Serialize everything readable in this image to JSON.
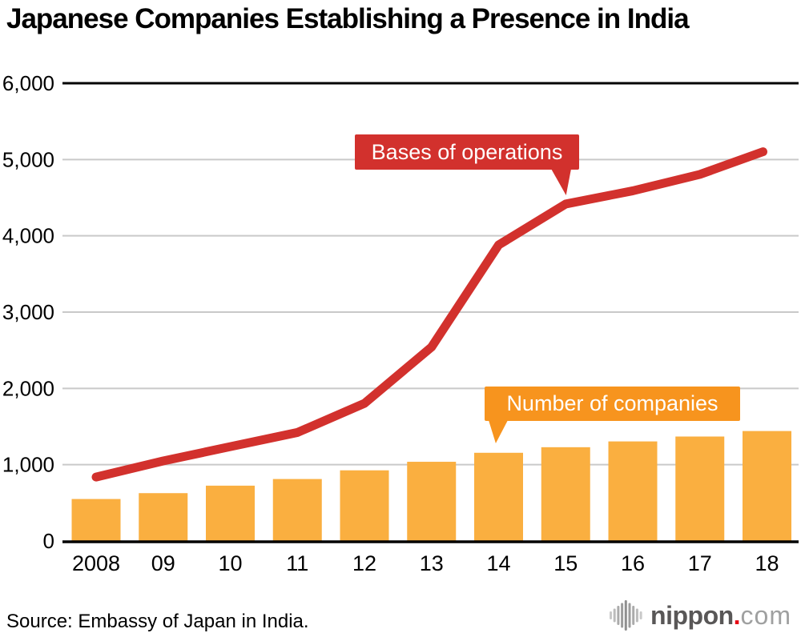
{
  "header": {
    "title": "Japanese Companies Establishing a Presence in India"
  },
  "callouts": {
    "line": "Bases of operations",
    "bar": "Number of companies"
  },
  "footer": {
    "source": "Source: Embassy of Japan in India.",
    "logo": {
      "icon": "audio-wave-icon",
      "brand": "nippon",
      "dot": ".",
      "suffix": "com"
    }
  },
  "colors": {
    "line": "#d2312d",
    "bar": "#faaf40",
    "line_label_bg": "#d2312d",
    "bar_label_bg": "#f7941e",
    "grid": "#c9c9c9",
    "axis": "#000000",
    "text": "#000000",
    "logo_brand": "#595757",
    "logo_dot": "#e60012",
    "logo_suffix": "#9fa0a0"
  },
  "chart_data": {
    "type": "combo",
    "title": "Japanese Companies Establishing a Presence in India",
    "categories": [
      "2008",
      "09",
      "10",
      "11",
      "12",
      "13",
      "14",
      "15",
      "16",
      "17",
      "18"
    ],
    "series": [
      {
        "name": "Bases of operations",
        "type": "line",
        "color": "#d2312d",
        "values": [
          838,
          1049,
          1236,
          1422,
          1804,
          2542,
          3880,
          4417,
          4590,
          4805,
          5102
        ]
      },
      {
        "name": "Number of companies",
        "type": "bar",
        "color": "#faaf40",
        "values": [
          550,
          627,
          725,
          812,
          926,
          1038,
          1156,
          1229,
          1305,
          1369,
          1441
        ]
      }
    ],
    "xlabel": "",
    "ylabel": "",
    "ylim": [
      0,
      6000
    ],
    "yticks": [
      0,
      1000,
      2000,
      3000,
      4000,
      5000,
      6000
    ],
    "ytick_labels": [
      "0",
      "1,000",
      "2,000",
      "3,000",
      "4,000",
      "5,000",
      "6,000"
    ],
    "grid": "horizontal-gray, top and bottom rules black",
    "legend": "inline-callouts",
    "source": "Source: Embassy of Japan in India."
  }
}
